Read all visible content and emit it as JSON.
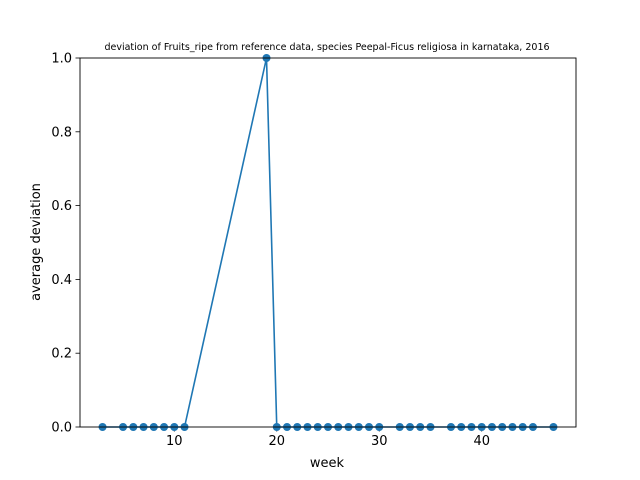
{
  "chart_data": {
    "type": "line",
    "title": "deviation of Fruits_ripe from reference data, species Peepal-Ficus religiosa in karnataka, 2016",
    "xlabel": "week",
    "ylabel": "average deviation",
    "xlim": [
      0.8,
      49.2
    ],
    "ylim": [
      0,
      1
    ],
    "xticks": [
      10,
      20,
      30,
      40
    ],
    "yticks": [
      0.0,
      0.2,
      0.4,
      0.6,
      0.8,
      1.0
    ],
    "ytick_labels": [
      "0.0",
      "0.2",
      "0.4",
      "0.6",
      "0.8",
      "1.0"
    ],
    "grid": false,
    "marker": "circle",
    "colors": {
      "line": "#1f77b4",
      "axes": "#000000",
      "background": "#ffffff"
    },
    "series": [
      {
        "x": [
          3,
          5,
          6,
          7,
          8,
          9,
          10,
          11,
          19,
          20,
          21,
          22,
          23,
          24,
          25,
          26,
          27,
          28,
          29,
          30,
          32,
          33,
          34,
          35,
          37,
          38,
          39,
          40,
          41,
          42,
          43,
          44,
          45,
          47
        ],
        "y": [
          0,
          0,
          0,
          0,
          0,
          0,
          0,
          0,
          1,
          0,
          0,
          0,
          0,
          0,
          0,
          0,
          0,
          0,
          0,
          0,
          0,
          0,
          0,
          0,
          0,
          0,
          0,
          0,
          0,
          0,
          0,
          0,
          0,
          0
        ]
      }
    ]
  }
}
